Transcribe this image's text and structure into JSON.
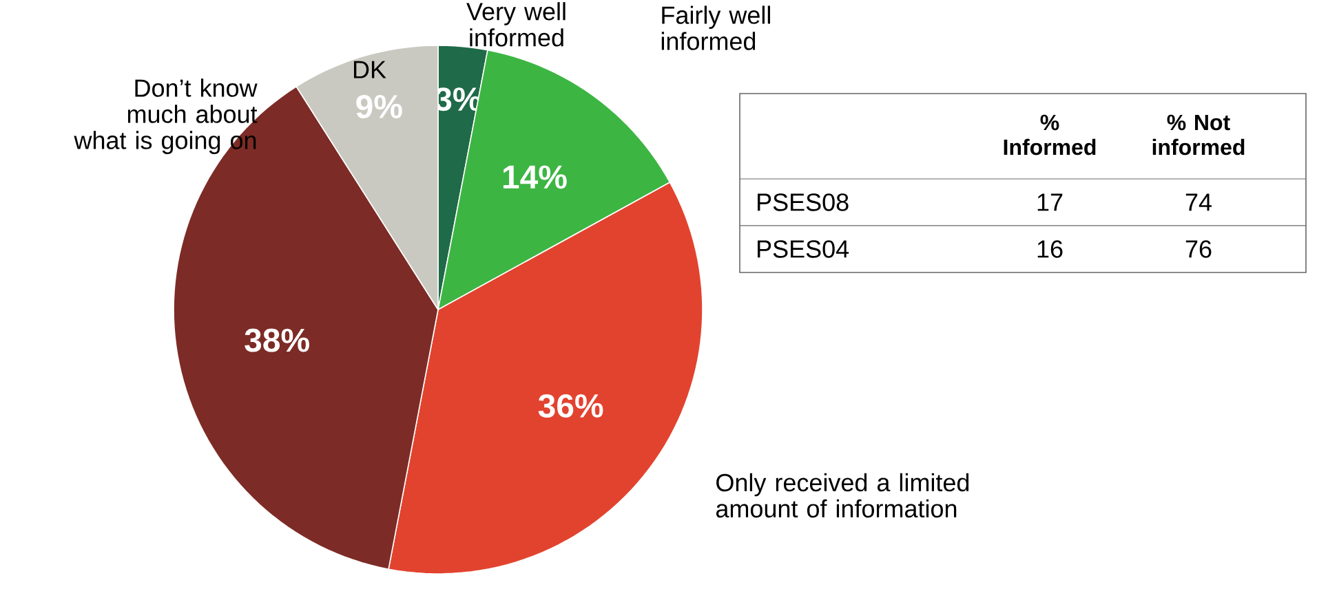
{
  "chart_data": [
    {
      "type": "pie",
      "categories": [
        "Very well informed",
        "Fairly well informed",
        "Only received a limited amount of information",
        "Don’t know much about what is going on",
        "DK"
      ],
      "values": [
        3,
        14,
        36,
        38,
        9
      ],
      "colors": [
        "#1f6a48",
        "#3db543",
        "#e2432f",
        "#7d2b26",
        "#c9c9c1"
      ],
      "value_labels": [
        "3%",
        "14%",
        "36%",
        "38%",
        "9%"
      ]
    },
    {
      "type": "other",
      "categories": [
        "PSES08",
        "PSES04"
      ],
      "series": [
        {
          "name": "% Informed",
          "values": [
            17,
            16
          ]
        },
        {
          "name": "% Not informed",
          "values": [
            74,
            76
          ]
        }
      ],
      "data_labels": true
    }
  ]
}
